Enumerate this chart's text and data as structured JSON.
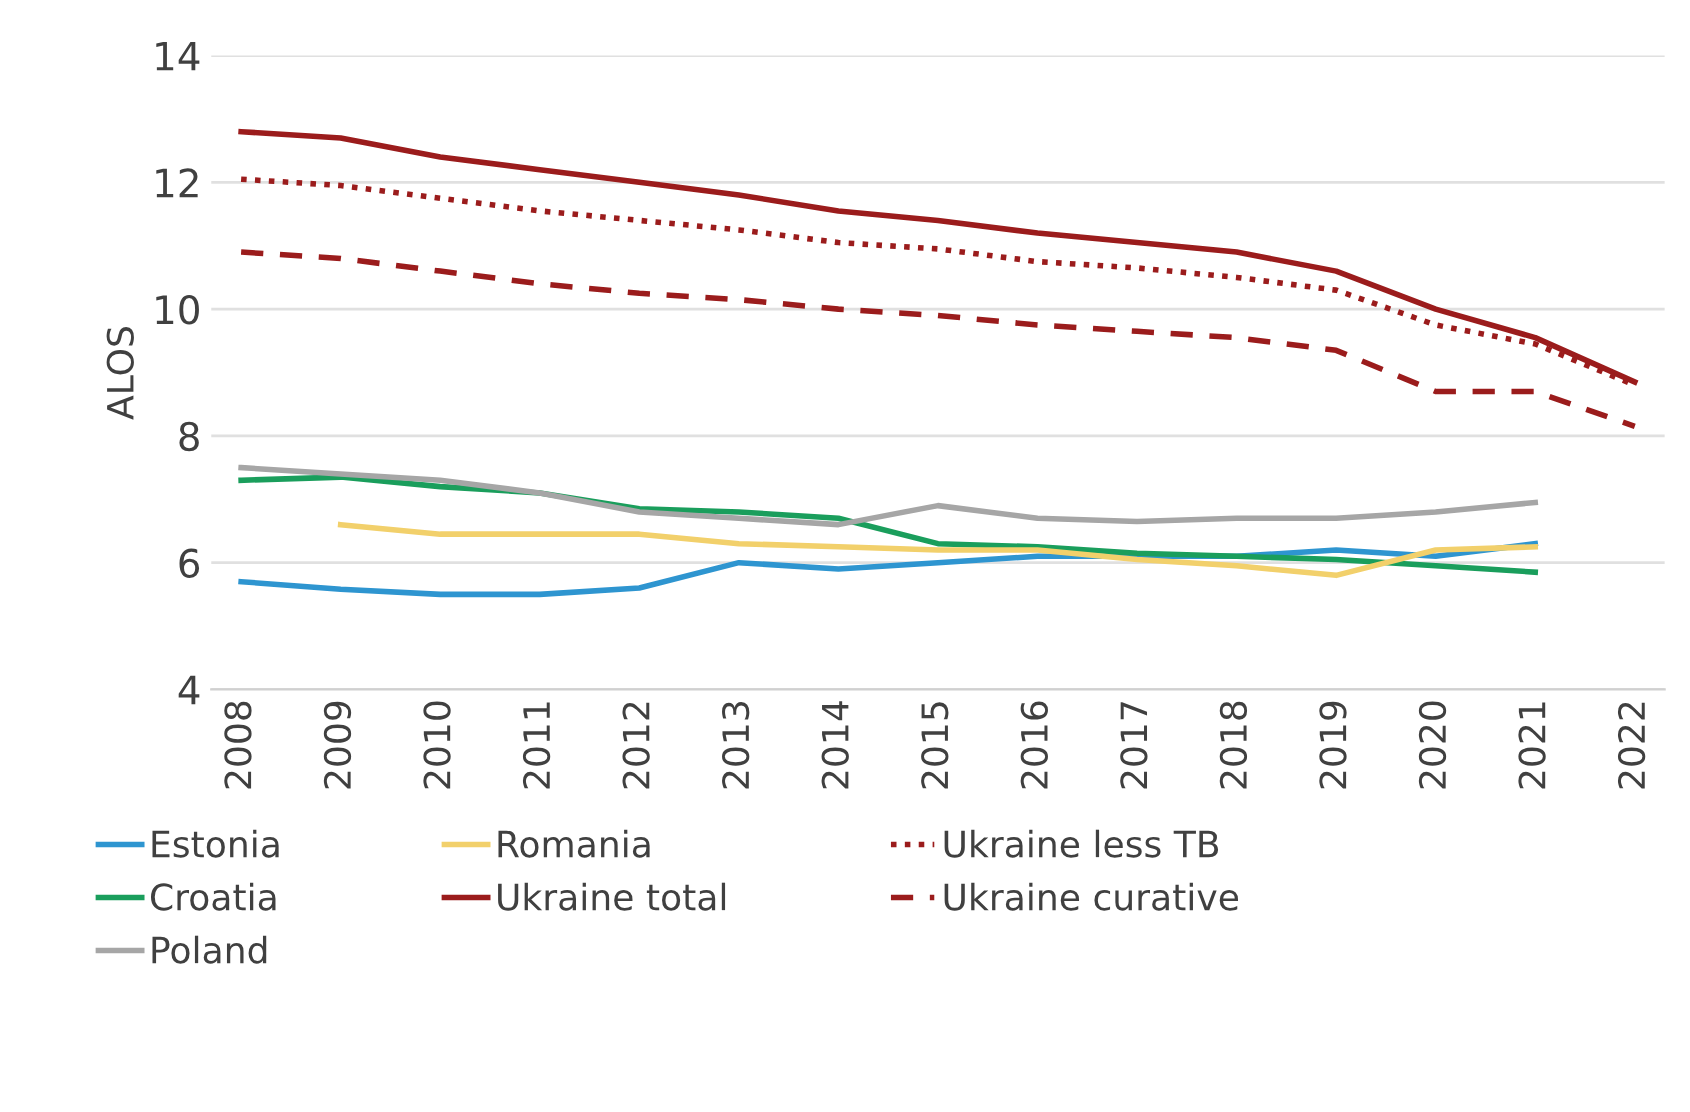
{
  "chart_data": {
    "type": "line",
    "ylabel": "ALOS",
    "categories": [
      "2008",
      "2009",
      "2010",
      "2011",
      "2012",
      "2013",
      "2014",
      "2015",
      "2016",
      "2017",
      "2018",
      "2019",
      "2020",
      "2021",
      "2022"
    ],
    "ylim": [
      4,
      14
    ],
    "yticks": [
      4,
      6,
      8,
      10,
      12,
      14
    ],
    "grid": "y",
    "legend": "bottom",
    "series": [
      {
        "name": "Estonia",
        "color": "#2e95d0",
        "values": [
          5.7,
          5.58,
          5.5,
          5.5,
          5.6,
          6.0,
          5.9,
          6.0,
          6.1,
          6.1,
          6.1,
          6.2,
          6.1,
          6.3,
          null
        ]
      },
      {
        "name": "Croatia",
        "color": "#1a9e5c",
        "values": [
          7.3,
          7.35,
          7.2,
          7.1,
          6.85,
          6.8,
          6.7,
          6.3,
          6.25,
          6.15,
          6.1,
          6.05,
          5.95,
          5.85,
          null
        ]
      },
      {
        "name": "Poland",
        "color": "#a6a6a6",
        "values": [
          7.5,
          7.4,
          7.3,
          7.1,
          6.8,
          6.7,
          6.6,
          6.9,
          6.7,
          6.65,
          6.7,
          6.7,
          6.8,
          6.95,
          null
        ]
      },
      {
        "name": "Romania",
        "color": "#f2d06b",
        "values": [
          null,
          6.6,
          6.45,
          6.45,
          6.45,
          6.3,
          6.25,
          6.2,
          6.2,
          6.05,
          5.95,
          5.8,
          6.2,
          6.25,
          null
        ]
      },
      {
        "name": "Ukraine total",
        "color": "#9b1c1c",
        "line_style": "solid",
        "values": [
          12.8,
          12.7,
          12.4,
          12.2,
          12.0,
          11.8,
          11.55,
          11.4,
          11.2,
          11.05,
          10.9,
          10.6,
          10.0,
          9.55,
          8.85
        ]
      },
      {
        "name": "Ukraine less TB",
        "color": "#9b1c1c",
        "line_style": "dotted",
        "values": [
          12.05,
          11.95,
          11.75,
          11.55,
          11.4,
          11.25,
          11.05,
          10.95,
          10.75,
          10.65,
          10.5,
          10.3,
          9.75,
          9.45,
          8.8
        ]
      },
      {
        "name": "Ukraine curative",
        "color": "#9b1c1c",
        "line_style": "dashed",
        "values": [
          10.9,
          10.8,
          10.6,
          10.4,
          10.25,
          10.15,
          10.0,
          9.9,
          9.75,
          9.65,
          9.55,
          9.35,
          8.7,
          8.7,
          8.15
        ]
      }
    ]
  }
}
